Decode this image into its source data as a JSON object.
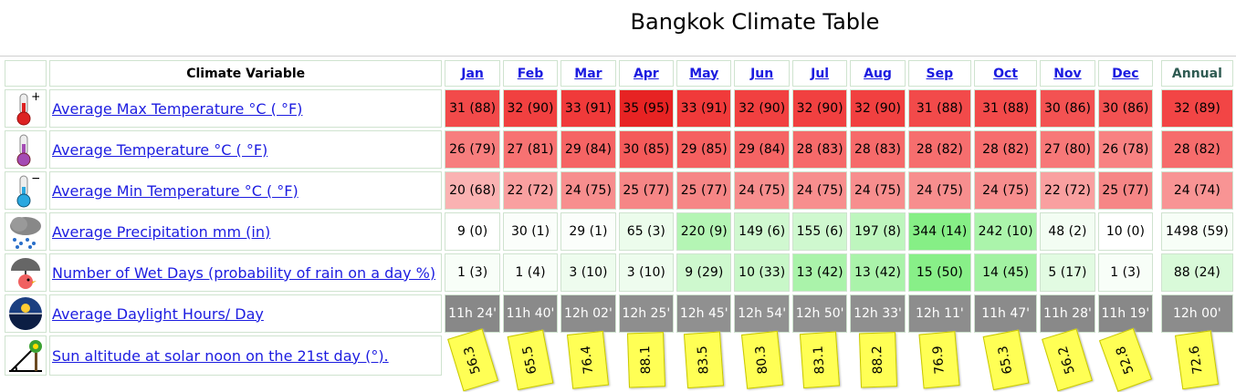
{
  "title": "Bangkok Climate Table",
  "header": {
    "variable_label": "Climate Variable",
    "months": [
      "Jan",
      "Feb",
      "Mar",
      "Apr",
      "May",
      "Jun",
      "Jul",
      "Aug",
      "Sep",
      "Oct",
      "Nov",
      "Dec"
    ],
    "annual_label": "Annual"
  },
  "rows": [
    {
      "label": "Average Max Temperature °C ( °F)",
      "icon": "thermometer-plus-icon",
      "values": [
        "31 (88)",
        "32 (90)",
        "33 (91)",
        "35 (95)",
        "33 (91)",
        "32 (90)",
        "32 (90)",
        "32 (90)",
        "31 (88)",
        "31 (88)",
        "30 (86)",
        "30 (86)"
      ],
      "annual": "32 (89)",
      "colors": [
        "#f24a4a",
        "#f14040",
        "#f03a3a",
        "#e72323",
        "#f03a3a",
        "#f14040",
        "#f14040",
        "#f14040",
        "#f24a4a",
        "#f24a4a",
        "#f35252",
        "#f35252"
      ],
      "annual_color": "#f24545"
    },
    {
      "label": "Average Temperature °C ( °F)",
      "icon": "thermometer-icon",
      "values": [
        "26 (79)",
        "27 (81)",
        "29 (84)",
        "30 (85)",
        "29 (85)",
        "29 (84)",
        "28 (83)",
        "28 (83)",
        "28 (82)",
        "28 (82)",
        "27 (80)",
        "26 (78)"
      ],
      "annual": "28 (82)",
      "colors": [
        "#f77e7e",
        "#f77272",
        "#f56464",
        "#f45a5a",
        "#f56060",
        "#f56464",
        "#f66a6a",
        "#f66a6a",
        "#f66e6e",
        "#f66e6e",
        "#f77878",
        "#f88282"
      ],
      "annual_color": "#f66c6c"
    },
    {
      "label": "Average Min Temperature °C ( °F)",
      "icon": "thermometer-minus-icon",
      "values": [
        "20 (68)",
        "22 (72)",
        "24 (75)",
        "25 (77)",
        "25 (77)",
        "24 (75)",
        "24 (75)",
        "24 (75)",
        "24 (75)",
        "24 (75)",
        "22 (72)",
        "25 (77)"
      ],
      "annual": "24 (74)",
      "colors": [
        "#fab2b2",
        "#f9a0a0",
        "#f78e8e",
        "#f68686",
        "#f68686",
        "#f78e8e",
        "#f78e8e",
        "#f78e8e",
        "#f78e8e",
        "#f78e8e",
        "#f9a0a0",
        "#f68686"
      ],
      "annual_color": "#f89494"
    },
    {
      "label": "Average Precipitation mm (in)",
      "icon": "rain-cloud-icon",
      "values": [
        "9 (0)",
        "30 (1)",
        "29 (1)",
        "65 (3)",
        "220 (9)",
        "149 (6)",
        "155 (6)",
        "197 (8)",
        "344 (14)",
        "242 (10)",
        "48 (2)",
        "10 (0)"
      ],
      "annual": "1498 (59)",
      "colors": [
        "#ffffff",
        "#fbfefb",
        "#fbfefb",
        "#ecfcec",
        "#b4f5b4",
        "#d0f8d0",
        "#cff8cf",
        "#bef6be",
        "#86ef86",
        "#abf4ab",
        "#f3fdf3",
        "#ffffff"
      ],
      "annual_color": "#f7fef7"
    },
    {
      "label": "Number of Wet Days (probability of rain on a day %)",
      "icon": "umbrella-bird-icon",
      "values": [
        "1 (3)",
        "1 (4)",
        "3 (10)",
        "3 (10)",
        "9 (29)",
        "10 (33)",
        "13 (42)",
        "13 (42)",
        "15 (50)",
        "14 (45)",
        "5 (17)",
        "1 (3)"
      ],
      "annual": "88 (24)",
      "colors": [
        "#f8fef8",
        "#f8fef8",
        "#eefcee",
        "#eefcee",
        "#cef8ce",
        "#c8f7c8",
        "#aaf3aa",
        "#aaf3aa",
        "#88ef88",
        "#a2f2a2",
        "#e2fbe2",
        "#f8fef8"
      ],
      "annual_color": "#d9fad9"
    },
    {
      "label": "Average Daylight Hours/ Day",
      "icon": "daylight-globe-icon",
      "values": [
        "11h 24'",
        "11h 40'",
        "12h 02'",
        "12h 25'",
        "12h 45'",
        "12h 54'",
        "12h 50'",
        "12h 33'",
        "12h 11'",
        "11h 47'",
        "11h 28'",
        "11h 19'"
      ],
      "annual": "12h 00'",
      "colors": [
        "#888888",
        "#8a8a8a",
        "#8c8c8c",
        "#8e8e8e",
        "#909090",
        "#919191",
        "#909090",
        "#8f8f8f",
        "#8d8d8d",
        "#8b8b8b",
        "#898989",
        "#888888"
      ],
      "annual_color": "#8c8c8c"
    },
    {
      "label": "Sun altitude at solar noon on the 21st day (°).",
      "icon": "sun-altitude-icon",
      "values": [
        "56.3",
        "65.5",
        "76.4",
        "88.1",
        "83.5",
        "80.3",
        "83.1",
        "88.2",
        "76.9",
        "65.3",
        "56.2",
        "52.8"
      ],
      "annual": "72.6"
    }
  ],
  "sun_rotations": [
    -17,
    -11,
    -6,
    -2,
    -4,
    -6,
    -4,
    -2,
    -5,
    -11,
    -17,
    -20
  ],
  "sun_rotation_annual": -8
}
